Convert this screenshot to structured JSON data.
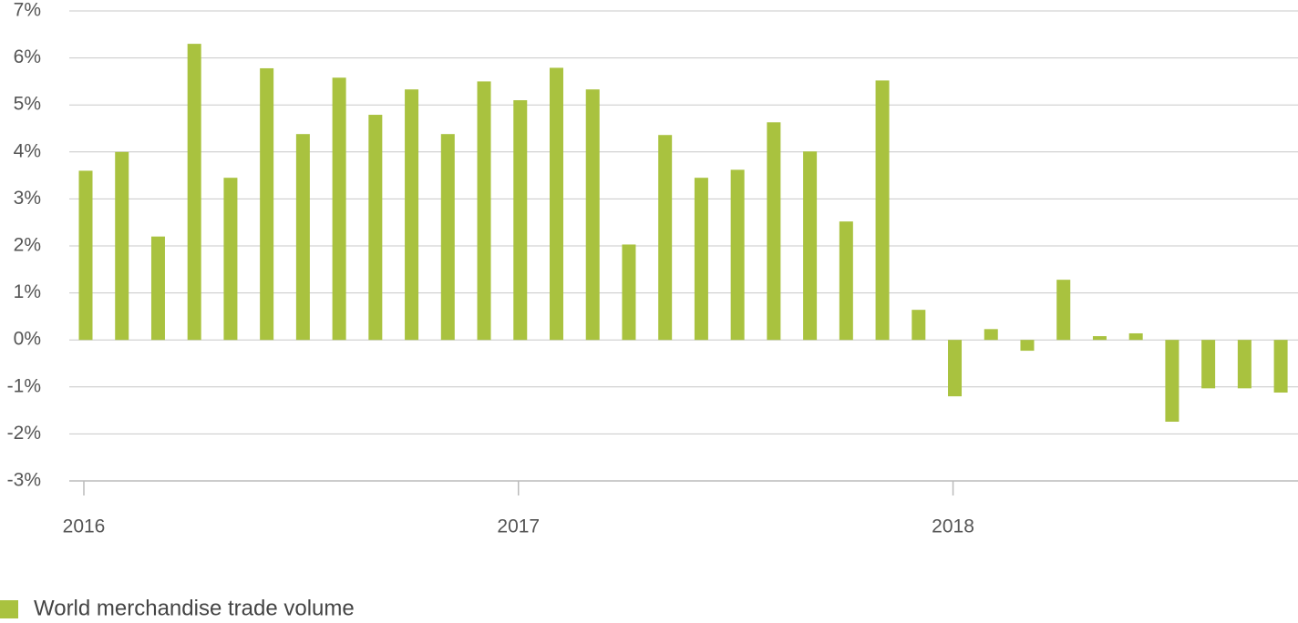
{
  "chart_data": {
    "type": "bar",
    "categories": [
      "2016",
      null,
      null,
      null,
      null,
      null,
      null,
      null,
      null,
      null,
      null,
      null,
      "2017",
      null,
      null,
      null,
      null,
      null,
      null,
      null,
      null,
      null,
      null,
      null,
      "2018",
      null,
      null,
      null,
      null,
      null,
      null,
      null,
      null,
      null
    ],
    "series": [
      {
        "name": "World merchandise trade volume",
        "color": "#a9c23f",
        "values": [
          3.6,
          4.0,
          2.2,
          6.3,
          3.45,
          5.78,
          4.38,
          5.58,
          4.79,
          5.33,
          4.38,
          5.5,
          5.1,
          5.79,
          5.33,
          2.03,
          4.36,
          3.45,
          3.62,
          4.63,
          4.01,
          2.52,
          5.52,
          0.64,
          -1.2,
          0.23,
          -0.23,
          1.28,
          0.08,
          0.14,
          -1.74,
          -1.03,
          -1.03,
          -1.12
        ]
      }
    ],
    "ylim": [
      -3,
      7
    ],
    "yticks": [
      {
        "value": 7,
        "label": "7%"
      },
      {
        "value": 6,
        "label": "6%"
      },
      {
        "value": 5,
        "label": "5%"
      },
      {
        "value": 4,
        "label": "4%"
      },
      {
        "value": 3,
        "label": "3%"
      },
      {
        "value": 2,
        "label": "2%"
      },
      {
        "value": 1,
        "label": "1%"
      },
      {
        "value": 0,
        "label": "0%"
      },
      {
        "value": -1,
        "label": "-1%"
      },
      {
        "value": -2,
        "label": "-2%"
      },
      {
        "value": -3,
        "label": "-3%"
      }
    ],
    "grid": true,
    "legend": "bottom-left"
  }
}
